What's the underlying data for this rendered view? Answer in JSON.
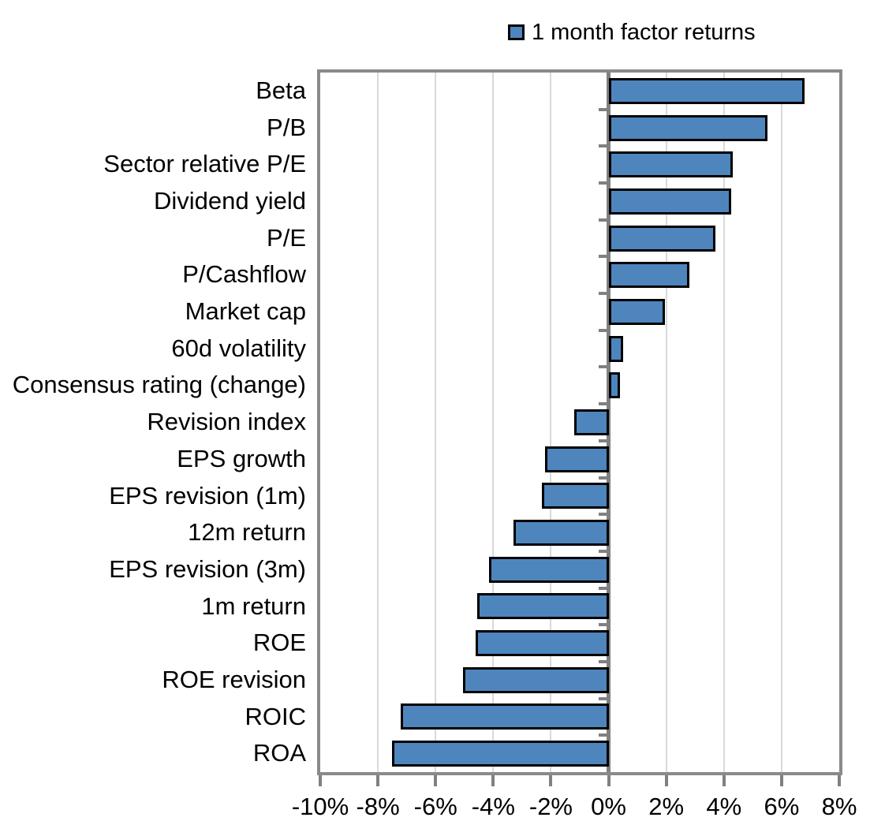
{
  "chart_data": {
    "type": "bar",
    "orientation": "horizontal",
    "title": "",
    "legend_label": "1 month factor returns",
    "legend_position": "top",
    "unit": "%",
    "categories": [
      "Beta",
      "P/B",
      "Sector relative P/E",
      "Dividend yield",
      "P/E",
      "P/Cashflow",
      "Market cap",
      "60d volatility",
      "Consensus rating (change)",
      "Revision index",
      "EPS growth",
      "EPS revision (1m)",
      "12m return",
      "EPS revision (3m)",
      "1m return",
      "ROE",
      "ROE revision",
      "ROIC",
      "ROA"
    ],
    "values": [
      6.8,
      5.5,
      4.3,
      4.25,
      3.7,
      2.8,
      1.95,
      0.5,
      0.4,
      -1.2,
      -2.2,
      -2.3,
      -3.3,
      -4.15,
      -4.55,
      -4.6,
      -5.05,
      -7.2,
      -7.5
    ],
    "xlim": [
      -10,
      8
    ],
    "x_tick_values": [
      -10,
      -8,
      -6,
      -4,
      -2,
      0,
      2,
      4,
      6,
      8
    ],
    "x_tick_labels": [
      "-10%",
      "-8%",
      "-6%",
      "-4%",
      "-2%",
      "0%",
      "2%",
      "4%",
      "6%",
      "8%"
    ],
    "grid": true,
    "colors": {
      "bar_fill": "#4E85BD",
      "bar_border": "#000000",
      "axis": "#808080",
      "frame": "#8A8A8A",
      "gridline": "#D9D9D9",
      "text": "#000000"
    }
  }
}
